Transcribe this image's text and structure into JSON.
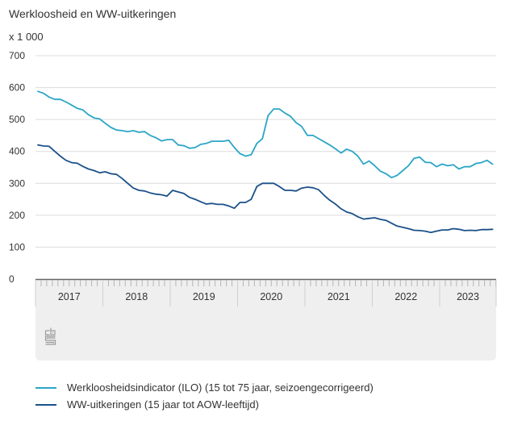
{
  "title": "Werkloosheid en WW-uitkeringen",
  "unit_label": "x 1 000",
  "logo": "cbs-logo-icon",
  "chart_data": {
    "type": "line",
    "title": "Werkloosheid en WW-uitkeringen",
    "ylabel": "x 1 000",
    "xlabel": "",
    "ylim": [
      0,
      700
    ],
    "yticks": [
      0,
      100,
      200,
      300,
      400,
      500,
      600,
      700
    ],
    "ytick_labels": [
      "0",
      "100",
      "200",
      "300",
      "400",
      "500",
      "600",
      "700"
    ],
    "x_years": [
      "2017",
      "2018",
      "2019",
      "2020",
      "2021",
      "2022",
      "2023"
    ],
    "x_start": "2017-01",
    "x_end": "2023-10",
    "x_frequency": "monthly",
    "grid": true,
    "legend_position": "bottom",
    "series": [
      {
        "name": "Werkloosheidsindicator (ILO) (15 tot 75 jaar, seizoengecorrigeerd)",
        "color": "#2ba6c6",
        "values": [
          588,
          582,
          570,
          563,
          563,
          555,
          545,
          535,
          530,
          515,
          505,
          502,
          488,
          475,
          467,
          465,
          462,
          465,
          460,
          462,
          450,
          443,
          433,
          437,
          437,
          420,
          418,
          410,
          412,
          422,
          425,
          432,
          432,
          432,
          435,
          412,
          393,
          385,
          390,
          425,
          440,
          512,
          533,
          533,
          520,
          510,
          490,
          478,
          450,
          450,
          440,
          430,
          420,
          408,
          395,
          407,
          400,
          385,
          360,
          370,
          355,
          338,
          330,
          318,
          325,
          340,
          355,
          378,
          382,
          366,
          365,
          352,
          360,
          355,
          358,
          345,
          352,
          352,
          362,
          365,
          372,
          360
        ]
      },
      {
        "name": "WW-uitkeringen (15 jaar tot AOW-leeftijd)",
        "color": "#1b5189",
        "values": [
          420,
          417,
          416,
          400,
          385,
          372,
          365,
          363,
          353,
          345,
          340,
          333,
          336,
          330,
          328,
          315,
          300,
          285,
          278,
          276,
          270,
          266,
          264,
          260,
          278,
          273,
          268,
          256,
          250,
          242,
          235,
          237,
          234,
          234,
          229,
          222,
          240,
          240,
          250,
          290,
          300,
          300,
          300,
          290,
          278,
          278,
          276,
          285,
          288,
          286,
          280,
          262,
          247,
          235,
          220,
          210,
          205,
          195,
          188,
          190,
          192,
          187,
          184,
          175,
          166,
          162,
          158,
          153,
          152,
          150,
          146,
          150,
          154,
          154,
          158,
          156,
          152,
          153,
          152,
          155,
          155,
          156
        ]
      }
    ]
  },
  "legend": [
    {
      "label": "Werkloosheidsindicator (ILO) (15 tot 75 jaar, seizoengecorrigeerd)",
      "color": "#2ba6c6"
    },
    {
      "label": "WW-uitkeringen (15 jaar tot AOW-leeftijd)",
      "color": "#1b5189"
    }
  ]
}
